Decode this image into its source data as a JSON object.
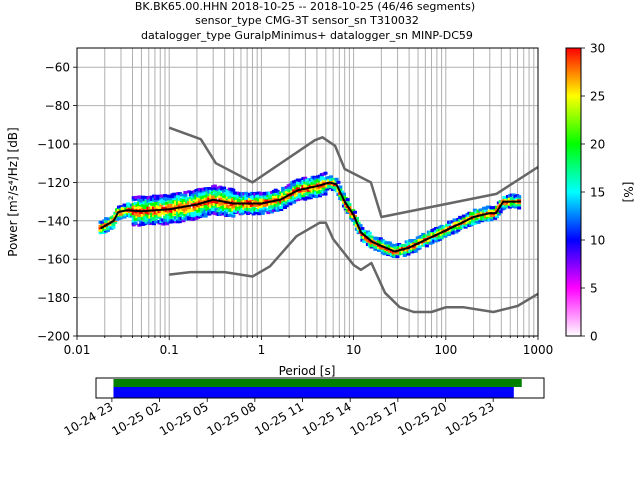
{
  "chart_data": {
    "type": "line",
    "title_lines": [
      "BK.BK65.00.HHN   2018-10-25 -- 2018-10-25  (46/46 segments)",
      "sensor_type CMG-3T sensor_sn T310032",
      "datalogger_type GuralpMinimus+ datalogger_sn MINP-DC59"
    ],
    "xlabel": "Period [s]",
    "ylabel": "Power [m²/s⁴/Hz] [dB]",
    "xscale": "log",
    "xlim": [
      0.01,
      1000
    ],
    "ylim": [
      -200,
      -50
    ],
    "xticks": [
      0.01,
      0.1,
      1,
      10,
      100,
      1000
    ],
    "xtick_labels": [
      "0.01",
      "0.1",
      "1",
      "10",
      "100",
      "1000"
    ],
    "yticks": [
      -200,
      -180,
      -160,
      -140,
      -120,
      -100,
      -80,
      -60
    ],
    "ytick_labels": [
      "−200",
      "−180",
      "−160",
      "−140",
      "−120",
      "−100",
      "−80",
      "−60"
    ],
    "grid": true,
    "series": [
      {
        "name": "NHNM",
        "color": "#666666",
        "x": [
          0.1,
          0.22,
          0.32,
          0.8,
          3.8,
          4.6,
          6.3,
          8,
          15.4,
          20,
          354,
          1000
        ],
        "y": [
          -91.5,
          -97.5,
          -110,
          -120,
          -98,
          -96.5,
          -101,
          -113,
          -120,
          -138,
          -126,
          -112
        ]
      },
      {
        "name": "NLNM",
        "color": "#666666",
        "x": [
          0.1,
          0.17,
          0.4,
          0.8,
          1.24,
          2.4,
          4.3,
          5,
          6,
          10,
          12,
          15.6,
          21.9,
          31.6,
          45,
          70,
          101,
          154,
          328,
          600,
          1000
        ],
        "y": [
          -168,
          -166.7,
          -166.7,
          -169,
          -163.7,
          -148,
          -141,
          -141,
          -149.5,
          -163,
          -165.5,
          -162,
          -177.5,
          -185,
          -187.5,
          -187.5,
          -185,
          -185,
          -187.5,
          -184.4,
          -178
        ]
      },
      {
        "name": "mode",
        "color": "#000000",
        "x": [
          0.018,
          0.025,
          0.028,
          0.035,
          0.05,
          0.1,
          0.2,
          0.3,
          0.5,
          1,
          1.6,
          2.5,
          4,
          5.5,
          6.5,
          8,
          10,
          12,
          16,
          20,
          28,
          40,
          60,
          100,
          150,
          200,
          300,
          350,
          420,
          650
        ],
        "y": [
          -144,
          -140,
          -135.5,
          -134.5,
          -135,
          -134,
          -131.5,
          -129,
          -131,
          -131,
          -129,
          -124,
          -122,
          -120,
          -121,
          -130,
          -137,
          -146,
          -151,
          -153,
          -156,
          -154,
          -150,
          -145,
          -141,
          -138,
          -136,
          -136,
          -130,
          -130
        ]
      }
    ],
    "colorbar": {
      "label": "[%]",
      "range": [
        0,
        30
      ],
      "ticks": [
        "0",
        "5",
        "10",
        "15",
        "20",
        "25",
        "30"
      ],
      "colors": [
        "#ffffff",
        "#ff00ff",
        "#0000ff",
        "#00ffff",
        "#00ff00",
        "#ffff00",
        "#ff0000"
      ]
    },
    "timeline": {
      "tick_labels": [
        "10-24 23",
        "10-25 02",
        "10-25 05",
        "10-25 08",
        "10-25 11",
        "10-25 14",
        "10-25 17",
        "10-25 20",
        "10-25 23"
      ],
      "start_hours": -1,
      "end_hours": 27.2,
      "bars": [
        {
          "name": "data-coverage",
          "color": "#008000",
          "start_hours": 0.1,
          "end_hours": 25.8
        },
        {
          "name": "psd-coverage",
          "color": "#0000ff",
          "start_hours": 0.1,
          "end_hours": 25.3
        }
      ]
    }
  }
}
